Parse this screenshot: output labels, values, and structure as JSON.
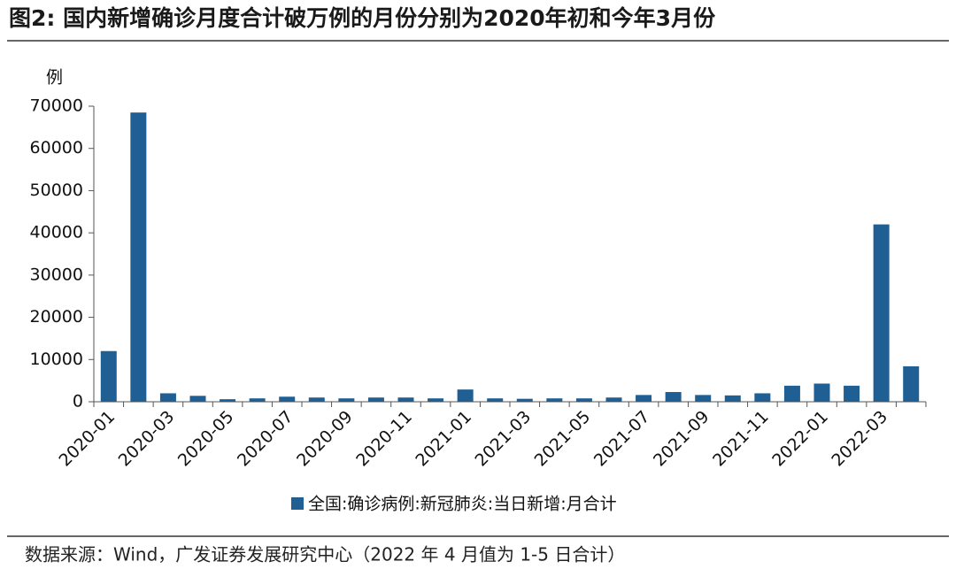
{
  "chart_data": {
    "type": "bar",
    "title": "图2:  国内新增确诊月度合计破万例的月份分别为2020年初和今年3月份",
    "y_label": "例",
    "source": "数据来源：Wind，广发证券发展研究中心（2022 年 4 月值为 1-5 日合计）",
    "categories": [
      "2020-01",
      null,
      "2020-03",
      null,
      "2020-05",
      null,
      "2020-07",
      null,
      "2020-09",
      null,
      "2020-11",
      null,
      "2021-01",
      null,
      "2021-03",
      null,
      "2021-05",
      null,
      "2021-07",
      null,
      "2021-09",
      null,
      "2021-11",
      null,
      "2022-01",
      null,
      "2022-03",
      null
    ],
    "series": [
      {
        "name": "全国:确诊病例:新冠肺炎:当日新增:月合计",
        "color": "#1f5f93",
        "values": [
          12000,
          68500,
          2000,
          1400,
          600,
          800,
          1200,
          1000,
          800,
          1000,
          1000,
          800,
          2900,
          800,
          700,
          800,
          800,
          1000,
          1600,
          2300,
          1600,
          1500,
          2000,
          3800,
          4300,
          3800,
          42000,
          8400
        ]
      }
    ],
    "ylim": [
      0,
      70000
    ],
    "yticks": [
      0,
      10000,
      20000,
      30000,
      40000,
      50000,
      60000,
      70000
    ],
    "grid": false
  }
}
